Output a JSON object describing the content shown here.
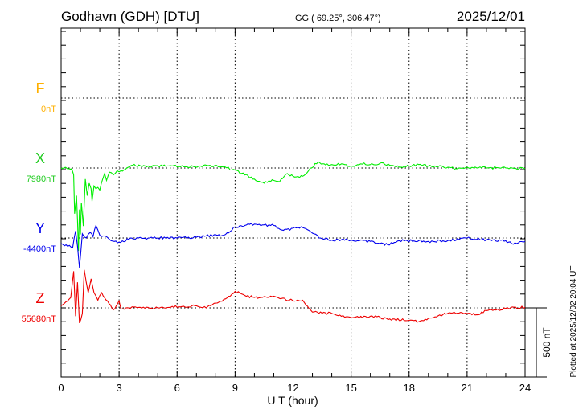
{
  "header": {
    "station": "Godhavn (GDH)  [DTU]",
    "coords": "GG ( 69.25°, 306.47°)",
    "date": "2025/12/01"
  },
  "footer": {
    "plotted": "Plotted at 2025/12/02 20:04 UT",
    "scale": "500 nT"
  },
  "chart_data": {
    "type": "line",
    "title": "Godhavn (GDH)  [DTU]",
    "xlabel": "U T (hour)",
    "xlim": [
      0,
      24
    ],
    "xticks": [
      "0",
      "3",
      "6",
      "9",
      "12",
      "15",
      "18",
      "21",
      "24"
    ],
    "scale_nT": 500,
    "grid": true,
    "series": [
      {
        "name": "F",
        "baseline_label": "0nT",
        "color": "#ffb000",
        "points": []
      },
      {
        "name": "X",
        "baseline_label": "7980nT",
        "color": "#00ee00",
        "label_color": "#22cc22",
        "points": [
          [
            0,
            0
          ],
          [
            0.55,
            -5
          ],
          [
            0.65,
            -50
          ],
          [
            0.7,
            -330
          ],
          [
            0.8,
            -200
          ],
          [
            0.85,
            -380
          ],
          [
            0.9,
            -600
          ],
          [
            0.95,
            -300
          ],
          [
            1.0,
            -480
          ],
          [
            1.05,
            -250
          ],
          [
            1.15,
            -420
          ],
          [
            1.25,
            -80
          ],
          [
            1.35,
            -200
          ],
          [
            1.45,
            -110
          ],
          [
            1.55,
            -150
          ],
          [
            1.6,
            -240
          ],
          [
            1.7,
            -130
          ],
          [
            1.8,
            -150
          ],
          [
            1.9,
            -140
          ],
          [
            2.0,
            -160
          ],
          [
            2.15,
            -80
          ],
          [
            2.25,
            -40
          ],
          [
            2.35,
            -90
          ],
          [
            2.5,
            -30
          ],
          [
            2.7,
            -50
          ],
          [
            2.9,
            -20
          ],
          [
            3.1,
            -20
          ],
          [
            3.4,
            0
          ],
          [
            3.7,
            20
          ],
          [
            4.5,
            15
          ],
          [
            5.5,
            15
          ],
          [
            6.5,
            10
          ],
          [
            7.2,
            15
          ],
          [
            7.7,
            20
          ],
          [
            8.3,
            10
          ],
          [
            9,
            -15
          ],
          [
            9.5,
            -50
          ],
          [
            10,
            -80
          ],
          [
            10.5,
            -110
          ],
          [
            11,
            -90
          ],
          [
            11.3,
            -100
          ],
          [
            11.7,
            -40
          ],
          [
            12,
            -60
          ],
          [
            12.5,
            -60
          ],
          [
            12.8,
            -20
          ],
          [
            13.3,
            45
          ],
          [
            13.6,
            30
          ],
          [
            14,
            25
          ],
          [
            14.5,
            30
          ],
          [
            15,
            15
          ],
          [
            15.5,
            30
          ],
          [
            16,
            25
          ],
          [
            16.5,
            35
          ],
          [
            17,
            20
          ],
          [
            17.5,
            5
          ],
          [
            18,
            15
          ],
          [
            18.5,
            25
          ],
          [
            19,
            15
          ],
          [
            19.5,
            10
          ],
          [
            20,
            5
          ],
          [
            20.5,
            -5
          ],
          [
            21,
            5
          ],
          [
            22,
            0
          ],
          [
            23,
            0
          ],
          [
            24,
            -5
          ]
        ]
      },
      {
        "name": "Y",
        "baseline_label": "-4400nT",
        "color": "#0000ee",
        "points": [
          [
            0,
            -40
          ],
          [
            0.6,
            -70
          ],
          [
            0.75,
            50
          ],
          [
            0.85,
            -60
          ],
          [
            0.95,
            -215
          ],
          [
            1.1,
            30
          ],
          [
            1.3,
            0
          ],
          [
            1.5,
            40
          ],
          [
            1.65,
            10
          ],
          [
            1.8,
            90
          ],
          [
            2.0,
            20
          ],
          [
            2.2,
            15
          ],
          [
            2.5,
            -10
          ],
          [
            3,
            -30
          ],
          [
            3.5,
            -10
          ],
          [
            4,
            0
          ],
          [
            5,
            0
          ],
          [
            6,
            0
          ],
          [
            7,
            5
          ],
          [
            7.5,
            15
          ],
          [
            8.5,
            25
          ],
          [
            9,
            80
          ],
          [
            9.5,
            90
          ],
          [
            10,
            100
          ],
          [
            10.5,
            95
          ],
          [
            11,
            90
          ],
          [
            11.5,
            55
          ],
          [
            12,
            70
          ],
          [
            12.5,
            75
          ],
          [
            13,
            35
          ],
          [
            13.5,
            -5
          ],
          [
            14,
            -15
          ],
          [
            15,
            -15
          ],
          [
            16,
            -25
          ],
          [
            16.9,
            -50
          ],
          [
            17.5,
            -20
          ],
          [
            18.5,
            -20
          ],
          [
            19,
            -25
          ],
          [
            20,
            -20
          ],
          [
            21,
            0
          ],
          [
            22,
            -15
          ],
          [
            23,
            -20
          ],
          [
            23.3,
            -40
          ],
          [
            24,
            -25
          ]
        ]
      },
      {
        "name": "Z",
        "baseline_label": "55680nT",
        "color": "#ee0000",
        "points": [
          [
            0,
            15
          ],
          [
            0.5,
            75
          ],
          [
            0.65,
            265
          ],
          [
            0.75,
            -60
          ],
          [
            0.85,
            185
          ],
          [
            0.95,
            -110
          ],
          [
            1.1,
            -40
          ],
          [
            1.2,
            275
          ],
          [
            1.4,
            110
          ],
          [
            1.55,
            210
          ],
          [
            1.7,
            110
          ],
          [
            1.9,
            55
          ],
          [
            2.1,
            110
          ],
          [
            2.4,
            50
          ],
          [
            2.7,
            -15
          ],
          [
            3,
            50
          ],
          [
            3.1,
            -10
          ],
          [
            3.5,
            0
          ],
          [
            5,
            0
          ],
          [
            7,
            15
          ],
          [
            7.5,
            0
          ],
          [
            8,
            35
          ],
          [
            8.5,
            65
          ],
          [
            9,
            120
          ],
          [
            9.5,
            90
          ],
          [
            10,
            75
          ],
          [
            11,
            85
          ],
          [
            11.8,
            55
          ],
          [
            12.5,
            55
          ],
          [
            13,
            -30
          ],
          [
            14,
            -40
          ],
          [
            15,
            -70
          ],
          [
            16,
            -60
          ],
          [
            17,
            -80
          ],
          [
            18,
            -90
          ],
          [
            18.5,
            -100
          ],
          [
            19,
            -75
          ],
          [
            20,
            -40
          ],
          [
            21,
            -40
          ],
          [
            21.5,
            -50
          ],
          [
            22,
            -20
          ],
          [
            23,
            -5
          ],
          [
            24,
            5
          ]
        ]
      }
    ]
  }
}
